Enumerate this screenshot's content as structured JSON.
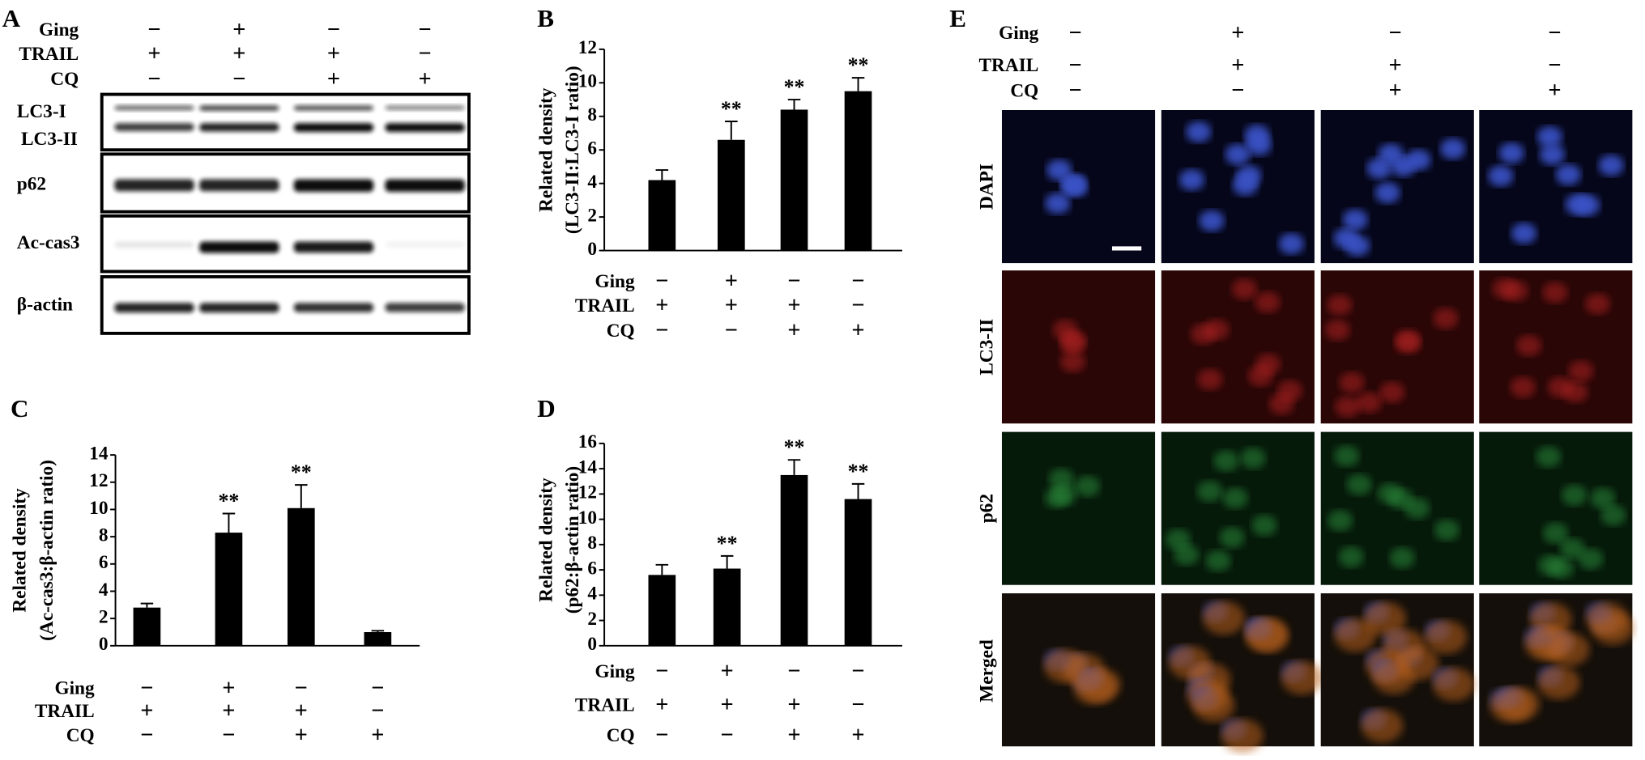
{
  "blot": {
    "panel": "A",
    "conditions": [
      {
        "name": "Ging",
        "signs": [
          "−",
          "+",
          "−",
          "−"
        ]
      },
      {
        "name": "TRAIL",
        "signs": [
          "+",
          "+",
          "+",
          "−"
        ]
      },
      {
        "name": "CQ",
        "signs": [
          "−",
          "−",
          "+",
          "+"
        ]
      }
    ],
    "rows": [
      "LC3-I",
      "LC3-II",
      "p62",
      "Ac-cas3",
      "β-actin"
    ]
  },
  "chart_data": [
    {
      "type": "bar",
      "panel": "B",
      "ylabel": [
        "Related density",
        "(LC3-II:LC3-I ratio)"
      ],
      "values": [
        4.2,
        6.6,
        8.4,
        9.5
      ],
      "errors": [
        0.6,
        1.1,
        0.6,
        0.8
      ],
      "annotations": [
        null,
        "**",
        "**",
        "**"
      ],
      "color": "#000000",
      "ylim": [
        0,
        12
      ],
      "yticks": [
        0,
        2,
        4,
        6,
        8,
        10,
        12
      ],
      "conditions": [
        {
          "name": "Ging",
          "signs": [
            "−",
            "+",
            "−",
            "−"
          ]
        },
        {
          "name": "TRAIL",
          "signs": [
            "+",
            "+",
            "+",
            "−"
          ]
        },
        {
          "name": "CQ",
          "signs": [
            "−",
            "−",
            "+",
            "+"
          ]
        }
      ]
    },
    {
      "type": "bar",
      "panel": "C",
      "ylabel": [
        "Related density",
        "(Ac-cas3:β-actin ratio)"
      ],
      "values": [
        2.8,
        8.3,
        10.1,
        1.0
      ],
      "errors": [
        0.3,
        1.4,
        1.7,
        0.1
      ],
      "annotations": [
        null,
        "**",
        "**",
        null
      ],
      "color": "#000000",
      "ylim": [
        0,
        14
      ],
      "yticks": [
        0,
        2,
        4,
        6,
        8,
        10,
        12,
        14
      ],
      "conditions": [
        {
          "name": "Ging",
          "signs": [
            "−",
            "+",
            "−",
            "−"
          ]
        },
        {
          "name": "TRAIL",
          "signs": [
            "+",
            "+",
            "+",
            "−"
          ]
        },
        {
          "name": "CQ",
          "signs": [
            "−",
            "−",
            "+",
            "+"
          ]
        }
      ]
    },
    {
      "type": "bar",
      "panel": "D",
      "ylabel": [
        "Related density",
        "(p62:β-actin ratio)"
      ],
      "values": [
        5.6,
        6.1,
        13.5,
        11.6
      ],
      "errors": [
        0.8,
        1.0,
        1.2,
        1.2
      ],
      "annotations": [
        null,
        "**",
        "**",
        "**"
      ],
      "color": "#000000",
      "ylim": [
        0,
        16
      ],
      "yticks": [
        0,
        2,
        4,
        6,
        8,
        10,
        12,
        14,
        16
      ],
      "conditions": [
        {
          "name": "Ging",
          "signs": [
            "−",
            "+",
            "−",
            "−"
          ]
        },
        {
          "name": "TRAIL",
          "signs": [
            "+",
            "+",
            "+",
            "−"
          ]
        },
        {
          "name": "CQ",
          "signs": [
            "−",
            "−",
            "+",
            "+"
          ]
        }
      ]
    }
  ],
  "micrograph": {
    "panel": "E",
    "conditions": [
      {
        "name": "Ging",
        "signs": [
          "−",
          "+",
          "−",
          "−"
        ]
      },
      {
        "name": "TRAIL",
        "signs": [
          "−",
          "+",
          "+",
          "−"
        ]
      },
      {
        "name": "CQ",
        "signs": [
          "−",
          "−",
          "+",
          "+"
        ]
      }
    ],
    "rows": [
      "DAPI",
      "LC3-II",
      "p62",
      "Merged"
    ]
  }
}
